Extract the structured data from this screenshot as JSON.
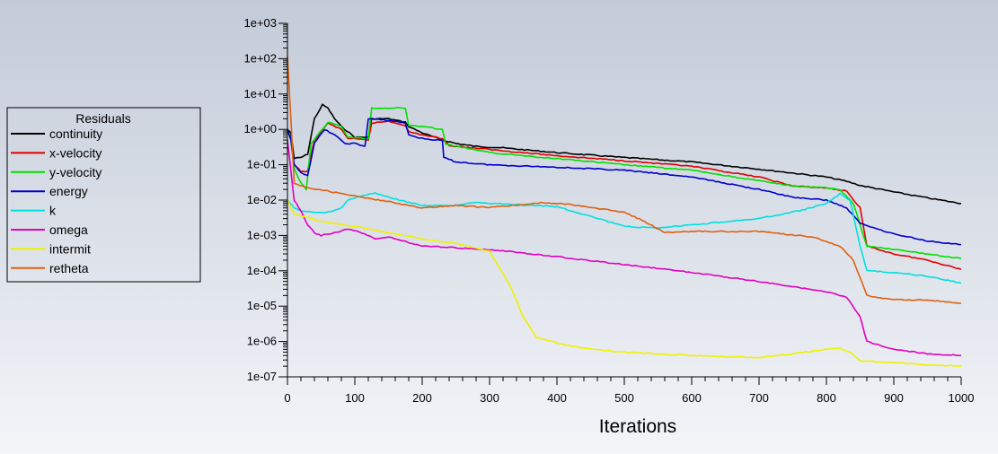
{
  "chart_data": {
    "type": "line",
    "title": "",
    "xlabel": "Iterations",
    "ylabel": "",
    "xlim": [
      0,
      1000
    ],
    "ylim": [
      1e-07,
      1000
    ],
    "yscale": "log",
    "grid": false,
    "legend_position": "left",
    "legend_title": "Residuals",
    "x_ticks": [
      0,
      100,
      200,
      300,
      400,
      500,
      600,
      700,
      800,
      900,
      1000
    ],
    "x_tick_labels": [
      "0",
      "100",
      "200",
      "300",
      "400",
      "500",
      "600",
      "700",
      "800",
      "900",
      "1000"
    ],
    "y_ticks": [
      1e-07,
      1e-06,
      1e-05,
      0.0001,
      0.001,
      0.01,
      0.1,
      1,
      10,
      100,
      1000
    ],
    "y_tick_labels": [
      "1e-07",
      "1e-06",
      "1e-05",
      "1e-04",
      "1e-03",
      "1e-02",
      "1e-01",
      "1e+00",
      "1e+01",
      "1e+02",
      "1e+03"
    ],
    "series": [
      {
        "name": "continuity",
        "color": "#000000",
        "points": [
          [
            0,
            1
          ],
          [
            5,
            0.8
          ],
          [
            10,
            0.15
          ],
          [
            20,
            0.16
          ],
          [
            30,
            0.2
          ],
          [
            40,
            2
          ],
          [
            52,
            5
          ],
          [
            60,
            4
          ],
          [
            70,
            2
          ],
          [
            80,
            1.2
          ],
          [
            100,
            0.6
          ],
          [
            120,
            0.6
          ],
          [
            125,
            2
          ],
          [
            150,
            2
          ],
          [
            175,
            1.6
          ],
          [
            180,
            1.2
          ],
          [
            200,
            0.8
          ],
          [
            230,
            0.5
          ],
          [
            250,
            0.4
          ],
          [
            280,
            0.33
          ],
          [
            320,
            0.3
          ],
          [
            400,
            0.22
          ],
          [
            500,
            0.16
          ],
          [
            600,
            0.12
          ],
          [
            700,
            0.075
          ],
          [
            800,
            0.045
          ],
          [
            830,
            0.034
          ],
          [
            850,
            0.026
          ],
          [
            900,
            0.017
          ],
          [
            950,
            0.0115
          ],
          [
            1000,
            0.008
          ]
        ]
      },
      {
        "name": "x-velocity",
        "color": "#e00000",
        "points": [
          [
            0,
            1
          ],
          [
            5,
            0.5
          ],
          [
            10,
            0.1
          ],
          [
            20,
            0.065
          ],
          [
            30,
            0.065
          ],
          [
            40,
            0.5
          ],
          [
            60,
            1.5
          ],
          [
            80,
            1
          ],
          [
            90,
            0.55
          ],
          [
            120,
            0.5
          ],
          [
            125,
            1.5
          ],
          [
            150,
            1.7
          ],
          [
            175,
            1.3
          ],
          [
            180,
            0.85
          ],
          [
            200,
            0.7
          ],
          [
            230,
            0.55
          ],
          [
            240,
            0.35
          ],
          [
            300,
            0.27
          ],
          [
            400,
            0.18
          ],
          [
            500,
            0.13
          ],
          [
            600,
            0.09
          ],
          [
            700,
            0.045
          ],
          [
            750,
            0.025
          ],
          [
            800,
            0.022
          ],
          [
            830,
            0.018
          ],
          [
            850,
            0.006
          ],
          [
            860,
            0.0005
          ],
          [
            900,
            0.0003
          ],
          [
            950,
            0.0002
          ],
          [
            1000,
            0.00011
          ]
        ]
      },
      {
        "name": "y-velocity",
        "color": "#00e000",
        "points": [
          [
            0,
            1
          ],
          [
            5,
            0.5
          ],
          [
            10,
            0.08
          ],
          [
            20,
            0.03
          ],
          [
            28,
            0.02
          ],
          [
            35,
            0.4
          ],
          [
            60,
            1.6
          ],
          [
            80,
            1.2
          ],
          [
            90,
            0.6
          ],
          [
            120,
            0.55
          ],
          [
            125,
            4
          ],
          [
            150,
            4
          ],
          [
            175,
            4
          ],
          [
            180,
            1.3
          ],
          [
            200,
            1.2
          ],
          [
            230,
            1
          ],
          [
            235,
            0.38
          ],
          [
            300,
            0.22
          ],
          [
            400,
            0.15
          ],
          [
            500,
            0.1
          ],
          [
            600,
            0.07
          ],
          [
            700,
            0.035
          ],
          [
            750,
            0.025
          ],
          [
            800,
            0.022
          ],
          [
            820,
            0.02
          ],
          [
            840,
            0.008
          ],
          [
            860,
            0.0005
          ],
          [
            900,
            0.0004
          ],
          [
            950,
            0.0003
          ],
          [
            1000,
            0.00022
          ]
        ]
      },
      {
        "name": "energy",
        "color": "#0000c8",
        "points": [
          [
            0,
            1
          ],
          [
            5,
            0.5
          ],
          [
            10,
            0.1
          ],
          [
            20,
            0.06
          ],
          [
            30,
            0.05
          ],
          [
            40,
            0.4
          ],
          [
            55,
            1
          ],
          [
            70,
            0.7
          ],
          [
            85,
            0.4
          ],
          [
            100,
            0.4
          ],
          [
            115,
            0.33
          ],
          [
            120,
            2
          ],
          [
            150,
            1.8
          ],
          [
            175,
            1.5
          ],
          [
            180,
            0.7
          ],
          [
            200,
            0.55
          ],
          [
            230,
            0.48
          ],
          [
            232,
            0.16
          ],
          [
            250,
            0.12
          ],
          [
            300,
            0.1
          ],
          [
            400,
            0.085
          ],
          [
            500,
            0.07
          ],
          [
            600,
            0.045
          ],
          [
            700,
            0.02
          ],
          [
            750,
            0.012
          ],
          [
            800,
            0.01
          ],
          [
            830,
            0.006
          ],
          [
            850,
            0.0022
          ],
          [
            900,
            0.0011
          ],
          [
            950,
            0.0007
          ],
          [
            1000,
            0.00055
          ]
        ]
      },
      {
        "name": "k",
        "color": "#00e0e0",
        "points": [
          [
            0,
            0.01
          ],
          [
            10,
            0.006
          ],
          [
            20,
            0.005
          ],
          [
            40,
            0.0045
          ],
          [
            60,
            0.0045
          ],
          [
            80,
            0.006
          ],
          [
            90,
            0.01
          ],
          [
            110,
            0.013
          ],
          [
            130,
            0.016
          ],
          [
            150,
            0.012
          ],
          [
            200,
            0.007
          ],
          [
            250,
            0.007
          ],
          [
            280,
            0.0085
          ],
          [
            400,
            0.0065
          ],
          [
            450,
            0.0035
          ],
          [
            500,
            0.0018
          ],
          [
            550,
            0.0016
          ],
          [
            600,
            0.002
          ],
          [
            700,
            0.003
          ],
          [
            760,
            0.005
          ],
          [
            800,
            0.008
          ],
          [
            820,
            0.015
          ],
          [
            835,
            0.01
          ],
          [
            850,
            0.0005
          ],
          [
            860,
            0.0001
          ],
          [
            900,
            9e-05
          ],
          [
            950,
            7e-05
          ],
          [
            1000,
            4.5e-05
          ]
        ]
      },
      {
        "name": "omega",
        "color": "#e000c0",
        "points": [
          [
            0,
            0.5
          ],
          [
            10,
            0.01
          ],
          [
            20,
            0.005
          ],
          [
            30,
            0.002
          ],
          [
            40,
            0.0012
          ],
          [
            50,
            0.001
          ],
          [
            70,
            0.0012
          ],
          [
            90,
            0.0015
          ],
          [
            110,
            0.0012
          ],
          [
            130,
            0.0008
          ],
          [
            150,
            0.0009
          ],
          [
            200,
            0.0005
          ],
          [
            300,
            0.0004
          ],
          [
            400,
            0.00025
          ],
          [
            500,
            0.00015
          ],
          [
            600,
            9e-05
          ],
          [
            700,
            5e-05
          ],
          [
            800,
            2.5e-05
          ],
          [
            830,
            1.8e-05
          ],
          [
            850,
            5e-06
          ],
          [
            860,
            1e-06
          ],
          [
            900,
            6e-07
          ],
          [
            950,
            4.5e-07
          ],
          [
            1000,
            4e-07
          ]
        ]
      },
      {
        "name": "intermit",
        "color": "#f0f000",
        "points": [
          [
            0,
            0.01
          ],
          [
            10,
            0.004
          ],
          [
            50,
            0.0025
          ],
          [
            100,
            0.0018
          ],
          [
            150,
            0.0012
          ],
          [
            200,
            0.0008
          ],
          [
            250,
            0.0006
          ],
          [
            300,
            0.00035
          ],
          [
            330,
            4e-05
          ],
          [
            350,
            5e-06
          ],
          [
            370,
            1.3e-06
          ],
          [
            400,
            9e-07
          ],
          [
            450,
            6e-07
          ],
          [
            500,
            5e-07
          ],
          [
            600,
            4e-07
          ],
          [
            700,
            3.5e-07
          ],
          [
            750,
            4.5e-07
          ],
          [
            800,
            6e-07
          ],
          [
            820,
            6.5e-07
          ],
          [
            835,
            5e-07
          ],
          [
            850,
            2.8e-07
          ],
          [
            900,
            2.5e-07
          ],
          [
            950,
            2.2e-07
          ],
          [
            1000,
            2e-07
          ]
        ]
      },
      {
        "name": "retheta",
        "color": "#e06010",
        "points": [
          [
            0,
            120
          ],
          [
            5,
            2
          ],
          [
            10,
            0.03
          ],
          [
            30,
            0.022
          ],
          [
            60,
            0.018
          ],
          [
            100,
            0.013
          ],
          [
            150,
            0.009
          ],
          [
            200,
            0.006
          ],
          [
            250,
            0.007
          ],
          [
            300,
            0.0062
          ],
          [
            350,
            0.0075
          ],
          [
            380,
            0.0085
          ],
          [
            420,
            0.0075
          ],
          [
            500,
            0.0045
          ],
          [
            530,
            0.0025
          ],
          [
            560,
            0.0012
          ],
          [
            600,
            0.0013
          ],
          [
            700,
            0.0013
          ],
          [
            780,
            0.0009
          ],
          [
            820,
            0.0005
          ],
          [
            840,
            0.0002
          ],
          [
            860,
            2e-05
          ],
          [
            900,
            1.5e-05
          ],
          [
            950,
            1.5e-05
          ],
          [
            1000,
            1.2e-05
          ]
        ]
      }
    ]
  }
}
